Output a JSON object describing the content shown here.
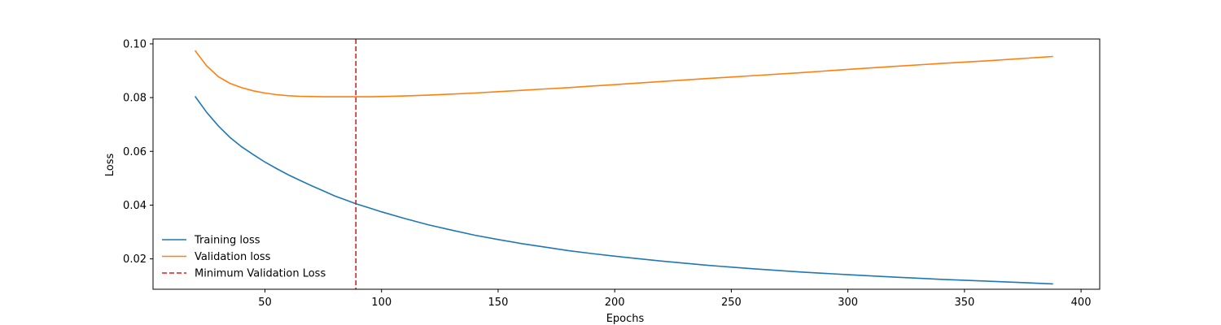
{
  "chart_data": {
    "type": "line",
    "title": "",
    "xlabel": "Epochs",
    "ylabel": "Loss",
    "xlim": [
      2,
      408
    ],
    "ylim": [
      0.0087,
      0.1018
    ],
    "x_ticks": [
      50,
      100,
      150,
      200,
      250,
      300,
      350,
      400
    ],
    "y_ticks": [
      0.02,
      0.04,
      0.06,
      0.08,
      0.1
    ],
    "x_tick_labels": [
      "50",
      "100",
      "150",
      "200",
      "250",
      "300",
      "350",
      "400"
    ],
    "y_tick_labels": [
      "0.02",
      "0.04",
      "0.06",
      "0.08",
      "0.10"
    ],
    "grid": false,
    "legend_placement": "lower-left",
    "series": [
      {
        "name": "Training loss",
        "color": "#1f77b4",
        "style": "solid",
        "x": [
          20,
          25,
          30,
          35,
          40,
          45,
          50,
          55,
          60,
          65,
          70,
          75,
          80,
          85,
          89,
          95,
          100,
          110,
          120,
          130,
          140,
          150,
          160,
          170,
          180,
          190,
          200,
          220,
          240,
          260,
          280,
          300,
          320,
          340,
          360,
          388
        ],
        "values": [
          0.0805,
          0.0745,
          0.0695,
          0.0652,
          0.0617,
          0.0588,
          0.056,
          0.0536,
          0.0513,
          0.0492,
          0.0472,
          0.0453,
          0.0434,
          0.0418,
          0.0405,
          0.0389,
          0.0375,
          0.035,
          0.0327,
          0.0307,
          0.0288,
          0.0272,
          0.0257,
          0.0244,
          0.0231,
          0.022,
          0.021,
          0.0192,
          0.0176,
          0.0163,
          0.0151,
          0.0141,
          0.0132,
          0.0124,
          0.0117,
          0.0107
        ]
      },
      {
        "name": "Validation loss",
        "color": "#ff7f0e",
        "style": "solid",
        "x": [
          20,
          25,
          30,
          35,
          40,
          45,
          50,
          55,
          60,
          65,
          70,
          75,
          80,
          85,
          89,
          95,
          100,
          110,
          120,
          130,
          140,
          150,
          160,
          170,
          180,
          190,
          200,
          220,
          240,
          260,
          280,
          300,
          320,
          340,
          360,
          388
        ],
        "values": [
          0.0975,
          0.0918,
          0.0878,
          0.0853,
          0.0837,
          0.0825,
          0.0817,
          0.0811,
          0.0807,
          0.0805,
          0.0804,
          0.0803,
          0.0803,
          0.0803,
          0.0803,
          0.0803,
          0.0804,
          0.0806,
          0.0809,
          0.0813,
          0.0817,
          0.0822,
          0.0827,
          0.0832,
          0.0837,
          0.0843,
          0.0848,
          0.086,
          0.0871,
          0.0882,
          0.0893,
          0.0905,
          0.0916,
          0.0927,
          0.0937,
          0.0953
        ]
      }
    ],
    "vlines": [
      {
        "name": "Minimum Validation Loss",
        "x": 89,
        "color": "#e31a1c",
        "style": "dashed"
      }
    ]
  }
}
